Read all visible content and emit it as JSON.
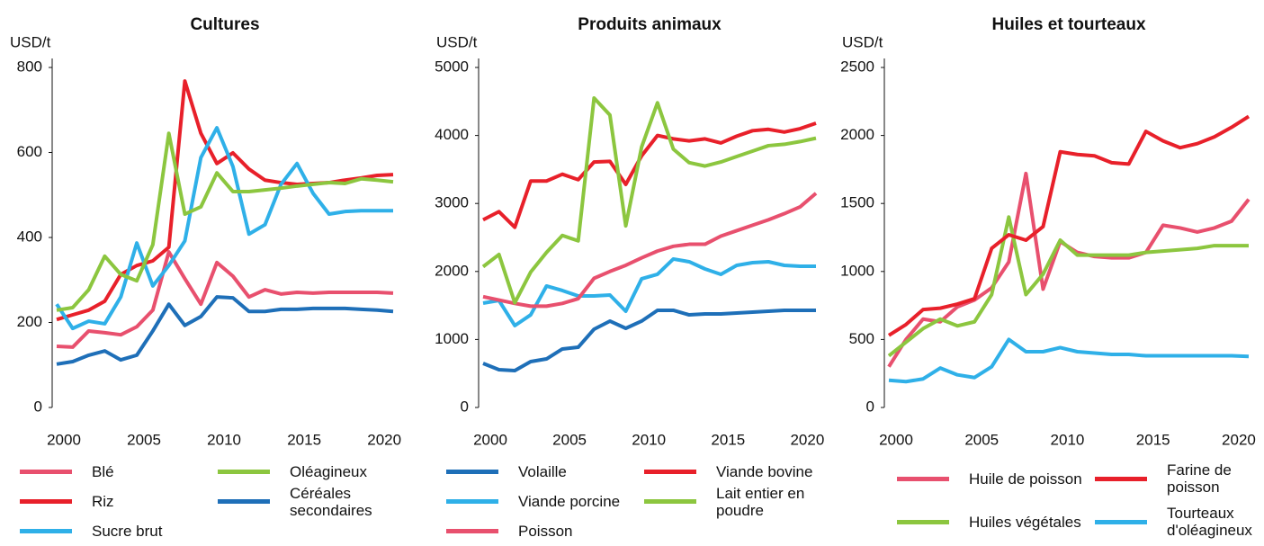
{
  "chart_data": [
    {
      "type": "line",
      "title": "Cultures",
      "y_label": "USD/t",
      "x": [
        2000,
        2001,
        2002,
        2003,
        2004,
        2005,
        2006,
        2007,
        2008,
        2009,
        2010,
        2011,
        2012,
        2013,
        2014,
        2015,
        2016,
        2017,
        2018,
        2019,
        2020,
        2021
      ],
      "xlim": [
        2000,
        2021
      ],
      "xticks": [
        2000,
        2005,
        2010,
        2015,
        2020
      ],
      "ylim": [
        0,
        800
      ],
      "yticks": [
        0,
        200,
        400,
        600,
        800
      ],
      "series": [
        {
          "name": "Blé",
          "color": "#e8506e",
          "values": [
            144,
            142,
            180,
            176,
            171,
            190,
            229,
            366,
            303,
            243,
            341,
            309,
            260,
            277,
            267,
            271,
            269,
            271,
            271,
            271,
            271,
            269
          ]
        },
        {
          "name": "Riz",
          "color": "#e8202a",
          "values": [
            207,
            218,
            229,
            250,
            313,
            334,
            345,
            377,
            768,
            645,
            574,
            599,
            561,
            535,
            529,
            525,
            527,
            529,
            535,
            540,
            546,
            548
          ]
        },
        {
          "name": "Sucre brut",
          "color": "#2fb0e8",
          "values": [
            243,
            186,
            203,
            197,
            260,
            387,
            286,
            334,
            392,
            588,
            658,
            567,
            408,
            430,
            525,
            574,
            504,
            455,
            461,
            463,
            463,
            463
          ]
        },
        {
          "name": "Oléagineux",
          "color": "#8cc63f",
          "values": [
            229,
            235,
            277,
            356,
            313,
            298,
            383,
            645,
            455,
            472,
            552,
            508,
            508,
            512,
            516,
            521,
            525,
            529,
            527,
            538,
            535,
            531
          ]
        },
        {
          "name": "Céréales secondaires",
          "color": "#1e6fb8",
          "values": [
            102,
            108,
            123,
            133,
            112,
            123,
            180,
            243,
            193,
            214,
            260,
            258,
            226,
            226,
            231,
            231,
            233,
            233,
            233,
            231,
            229,
            226
          ]
        }
      ]
    },
    {
      "type": "line",
      "title": "Produits animaux",
      "y_label": "USD/t",
      "x": [
        2000,
        2001,
        2002,
        2003,
        2004,
        2005,
        2006,
        2007,
        2008,
        2009,
        2010,
        2011,
        2012,
        2013,
        2014,
        2015,
        2016,
        2017,
        2018,
        2019,
        2020,
        2021
      ],
      "xlim": [
        2000,
        2021
      ],
      "xticks": [
        2000,
        2005,
        2010,
        2015,
        2020
      ],
      "ylim": [
        0,
        5000
      ],
      "yticks": [
        0,
        1000,
        2000,
        3000,
        4000,
        5000
      ],
      "series": [
        {
          "name": "Volaille",
          "color": "#1e6fb8",
          "values": [
            648,
            556,
            542,
            675,
            714,
            860,
            886,
            1151,
            1270,
            1164,
            1270,
            1429,
            1429,
            1362,
            1376,
            1376,
            1389,
            1402,
            1415,
            1429,
            1429,
            1429
          ]
        },
        {
          "name": "Viande porcine",
          "color": "#2fb0e8",
          "values": [
            1534,
            1574,
            1204,
            1362,
            1786,
            1720,
            1640,
            1640,
            1653,
            1415,
            1892,
            1958,
            2183,
            2143,
            2037,
            1958,
            2090,
            2130,
            2143,
            2090,
            2077,
            2077
          ]
        },
        {
          "name": "Poisson",
          "color": "#e8506e",
          "values": [
            1630,
            1580,
            1530,
            1490,
            1490,
            1530,
            1600,
            1900,
            2000,
            2090,
            2200,
            2300,
            2370,
            2400,
            2400,
            2520,
            2600,
            2680,
            2760,
            2850,
            2950,
            3150
          ]
        },
        {
          "name": "Viande bovine",
          "color": "#e8202a",
          "values": [
            2760,
            2880,
            2650,
            3330,
            3330,
            3430,
            3350,
            3610,
            3620,
            3280,
            3700,
            4000,
            3950,
            3920,
            3950,
            3890,
            3990,
            4070,
            4090,
            4050,
            4100,
            4180
          ]
        },
        {
          "name": "Lait entier en poudre",
          "color": "#8cc63f",
          "values": [
            2070,
            2250,
            1540,
            1990,
            2280,
            2530,
            2450,
            4550,
            4300,
            2670,
            3830,
            4480,
            3800,
            3600,
            3550,
            3610,
            3690,
            3770,
            3850,
            3870,
            3910,
            3960
          ]
        }
      ]
    },
    {
      "type": "line",
      "title": "Huiles et tourteaux",
      "y_label": "USD/t",
      "x": [
        2000,
        2001,
        2002,
        2003,
        2004,
        2005,
        2006,
        2007,
        2008,
        2009,
        2010,
        2011,
        2012,
        2013,
        2014,
        2015,
        2016,
        2017,
        2018,
        2019,
        2020,
        2021
      ],
      "xlim": [
        2000,
        2021
      ],
      "xticks": [
        2000,
        2005,
        2010,
        2015,
        2020
      ],
      "ylim": [
        0,
        2500
      ],
      "yticks": [
        0,
        500,
        1000,
        1500,
        2000,
        2500
      ],
      "series": [
        {
          "name": "Huile de poisson",
          "color": "#e8506e",
          "values": [
            300,
            500,
            650,
            630,
            740,
            790,
            880,
            1070,
            1720,
            870,
            1220,
            1140,
            1110,
            1100,
            1100,
            1140,
            1340,
            1320,
            1290,
            1320,
            1370,
            1530
          ]
        },
        {
          "name": "Huiles végétales",
          "color": "#8cc63f",
          "values": [
            380,
            480,
            580,
            650,
            600,
            630,
            830,
            1400,
            830,
            980,
            1230,
            1120,
            1120,
            1120,
            1120,
            1140,
            1150,
            1160,
            1170,
            1190,
            1190,
            1190
          ]
        },
        {
          "name": "Farine de poisson",
          "color": "#e8202a",
          "values": [
            530,
            610,
            720,
            730,
            760,
            800,
            1170,
            1270,
            1230,
            1330,
            1880,
            1860,
            1850,
            1800,
            1790,
            2030,
            1960,
            1910,
            1940,
            1990,
            2060,
            2140
          ]
        },
        {
          "name": "Tourteaux d'oléagineux",
          "color": "#2fb0e8",
          "values": [
            200,
            190,
            210,
            290,
            240,
            220,
            300,
            500,
            410,
            410,
            440,
            410,
            400,
            390,
            390,
            380,
            380,
            380,
            380,
            380,
            380,
            375
          ]
        }
      ]
    }
  ]
}
